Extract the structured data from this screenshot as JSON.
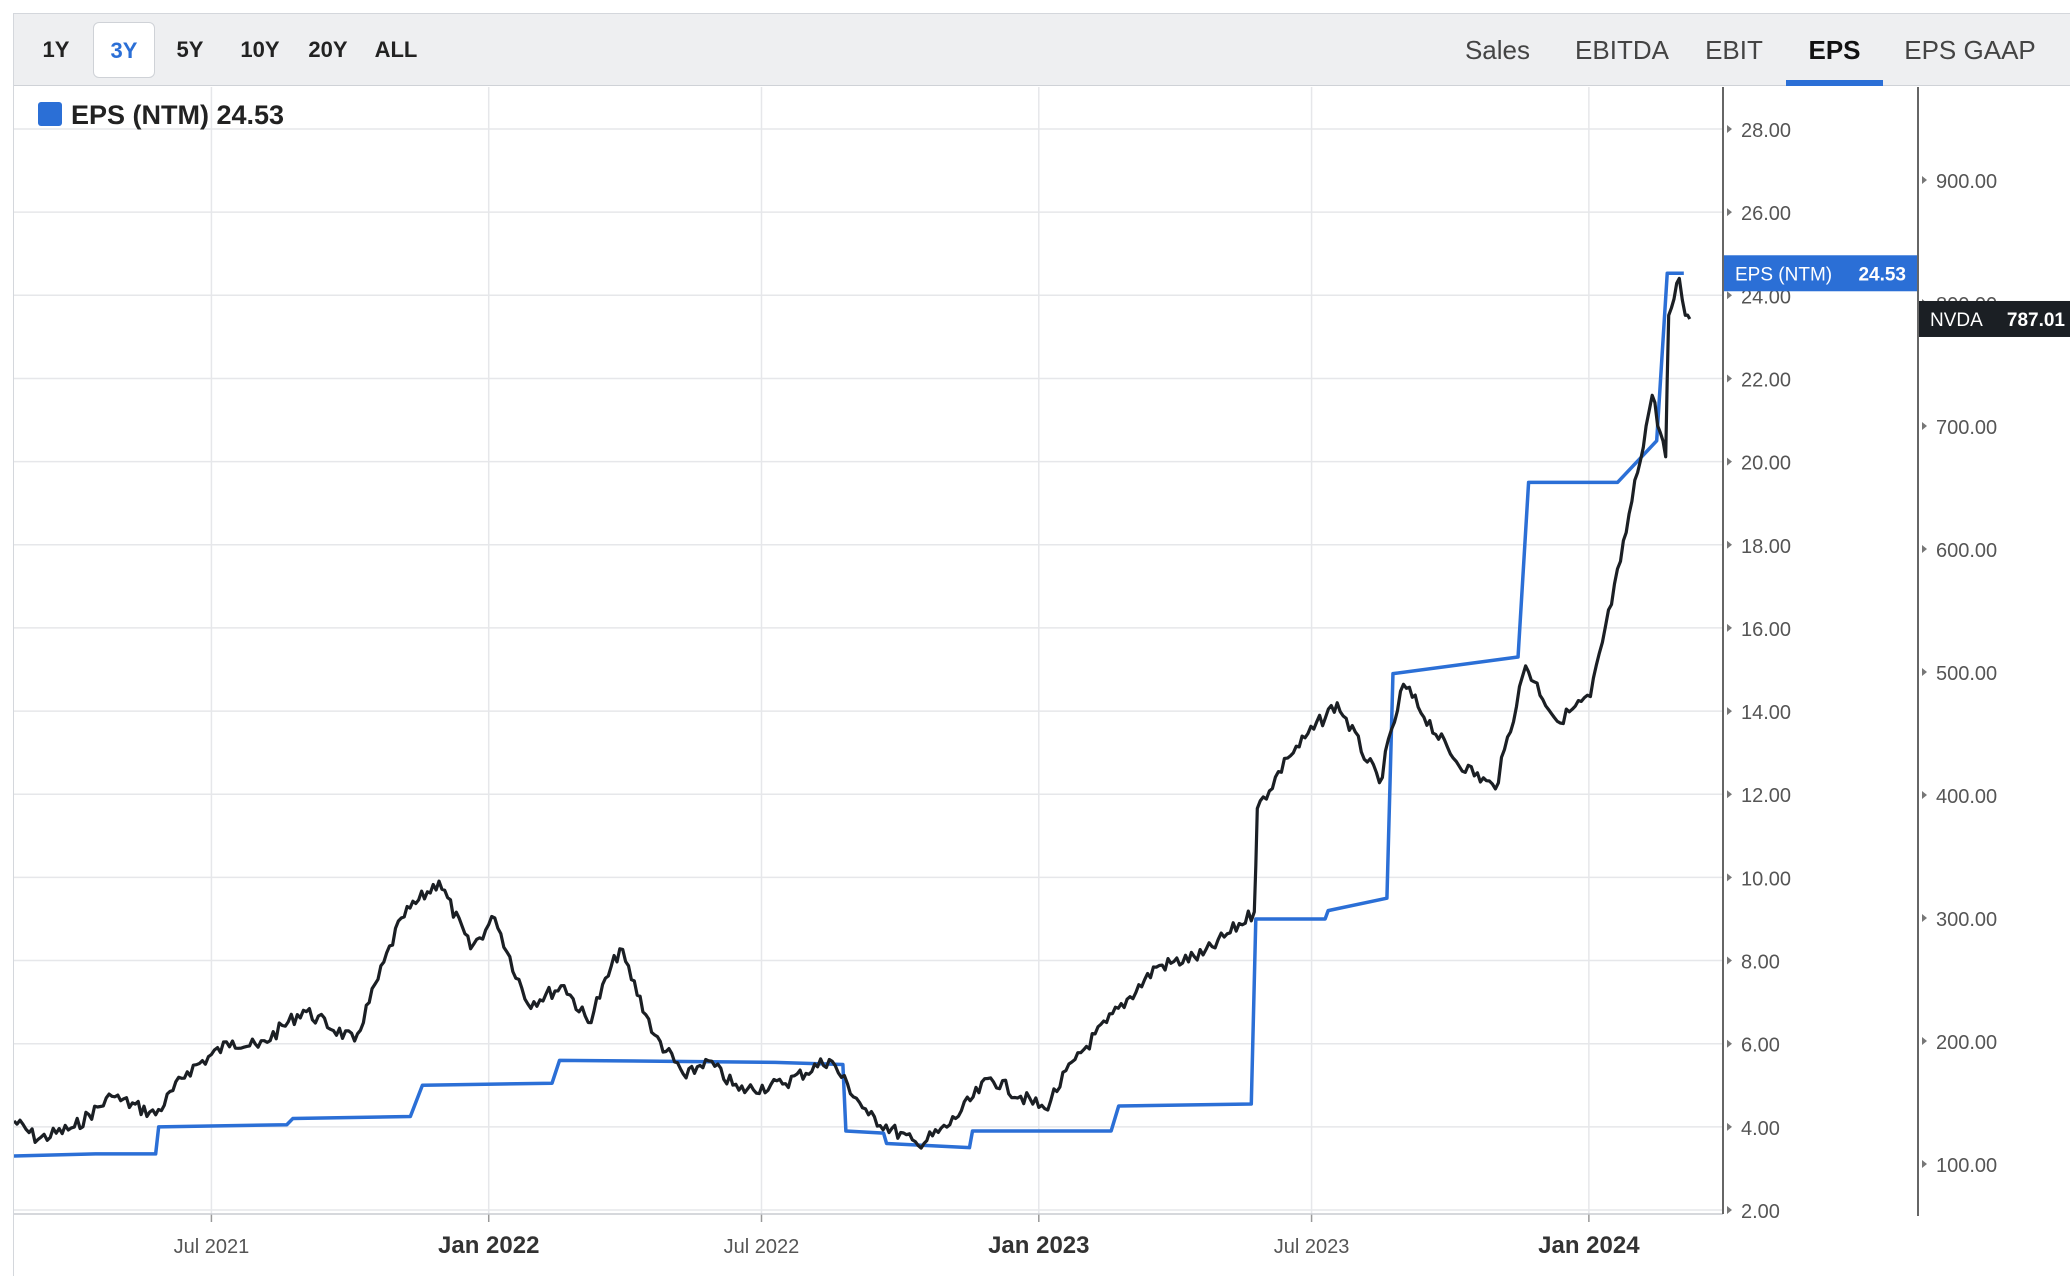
{
  "toolbar": {
    "ranges": [
      {
        "label": "1Y",
        "active": false
      },
      {
        "label": "3Y",
        "active": true
      },
      {
        "label": "5Y",
        "active": false
      },
      {
        "label": "10Y",
        "active": false
      },
      {
        "label": "20Y",
        "active": false
      },
      {
        "label": "ALL",
        "active": false
      }
    ],
    "metrics": [
      {
        "label": "Sales",
        "active": false
      },
      {
        "label": "EBITDA",
        "active": false
      },
      {
        "label": "EBIT",
        "active": false
      },
      {
        "label": "EPS",
        "active": true
      },
      {
        "label": "EPS GAAP",
        "active": false
      }
    ]
  },
  "colors": {
    "eps": "#2b6fd6",
    "price": "#1b1f24",
    "grid": "#e6e7ea"
  },
  "chart_data": {
    "type": "line",
    "legend": {
      "label": "EPS (NTM) 24.53",
      "placement": "top-left"
    },
    "x_range": [
      "2021-02-20",
      "2024-03-30"
    ],
    "x_ticks": [
      {
        "date": "2021-07-01",
        "label": "Jul 2021",
        "major": false
      },
      {
        "date": "2022-01-01",
        "label": "Jan 2022",
        "major": true
      },
      {
        "date": "2022-07-01",
        "label": "Jul 2022",
        "major": false
      },
      {
        "date": "2023-01-01",
        "label": "Jan 2023",
        "major": true
      },
      {
        "date": "2023-07-01",
        "label": "Jul 2023",
        "major": false
      },
      {
        "date": "2024-01-01",
        "label": "Jan 2024",
        "major": true
      }
    ],
    "y_left": {
      "ylim": [
        2,
        29
      ],
      "ticks": [
        {
          "v": 2,
          "label": "2.00"
        },
        {
          "v": 4,
          "label": "4.00"
        },
        {
          "v": 6,
          "label": "6.00"
        },
        {
          "v": 8,
          "label": "8.00"
        },
        {
          "v": 10,
          "label": "10.00"
        },
        {
          "v": 12,
          "label": "12.00"
        },
        {
          "v": 14,
          "label": "14.00"
        },
        {
          "v": 16,
          "label": "16.00"
        },
        {
          "v": 18,
          "label": "18.00"
        },
        {
          "v": 20,
          "label": "20.00"
        },
        {
          "v": 22,
          "label": "22.00"
        },
        {
          "v": 24,
          "label": "24.00"
        },
        {
          "v": 26,
          "label": "26.00"
        },
        {
          "v": 28,
          "label": "28.00"
        }
      ]
    },
    "y_right": {
      "ylim": [
        50,
        1010
      ],
      "ticks": [
        {
          "v": 100,
          "label": "100.00"
        },
        {
          "v": 200,
          "label": "200.00"
        },
        {
          "v": 300,
          "label": "300.00"
        },
        {
          "v": 400,
          "label": "400.00"
        },
        {
          "v": 500,
          "label": "500.00"
        },
        {
          "v": 600,
          "label": "600.00"
        },
        {
          "v": 700,
          "label": "700.00"
        },
        {
          "v": 800,
          "label": "800.00"
        },
        {
          "v": 900,
          "label": "900.00"
        }
      ]
    },
    "series": [
      {
        "name": "EPS (NTM)",
        "axis": "left",
        "step": true,
        "end_label": {
          "name": "EPS (NTM)",
          "value": "24.53"
        },
        "points": [
          [
            "2021-02-20",
            3.3
          ],
          [
            "2021-04-15",
            3.35
          ],
          [
            "2021-05-25",
            3.35
          ],
          [
            "2021-05-27",
            4.0
          ],
          [
            "2021-08-20",
            4.05
          ],
          [
            "2021-08-24",
            4.2
          ],
          [
            "2021-11-10",
            4.25
          ],
          [
            "2021-11-18",
            5.0
          ],
          [
            "2022-02-12",
            5.05
          ],
          [
            "2022-02-17",
            5.6
          ],
          [
            "2022-07-10",
            5.55
          ],
          [
            "2022-08-24",
            5.5
          ],
          [
            "2022-08-26",
            3.9
          ],
          [
            "2022-09-20",
            3.85
          ],
          [
            "2022-09-22",
            3.6
          ],
          [
            "2022-11-16",
            3.5
          ],
          [
            "2022-11-18",
            3.9
          ],
          [
            "2023-02-18",
            3.9
          ],
          [
            "2023-02-23",
            4.5
          ],
          [
            "2023-05-22",
            4.55
          ],
          [
            "2023-05-25",
            9.0
          ],
          [
            "2023-07-10",
            9.0
          ],
          [
            "2023-07-12",
            9.2
          ],
          [
            "2023-08-20",
            9.5
          ],
          [
            "2023-08-24",
            14.9
          ],
          [
            "2023-11-15",
            15.3
          ],
          [
            "2023-11-22",
            19.5
          ],
          [
            "2024-01-20",
            19.5
          ],
          [
            "2024-02-15",
            20.5
          ],
          [
            "2024-02-22",
            24.53
          ],
          [
            "2024-03-04",
            24.53
          ]
        ]
      },
      {
        "name": "NVDA",
        "axis": "right",
        "step": false,
        "end_label": {
          "name": "NVDA",
          "value": "787.01"
        },
        "points": [
          [
            "2021-02-20",
            135
          ],
          [
            "2021-03-08",
            120
          ],
          [
            "2021-04-01",
            130
          ],
          [
            "2021-04-26",
            155
          ],
          [
            "2021-05-25",
            140
          ],
          [
            "2021-06-15",
            175
          ],
          [
            "2021-07-15",
            200
          ],
          [
            "2021-08-01",
            195
          ],
          [
            "2021-08-31",
            225
          ],
          [
            "2021-10-04",
            200
          ],
          [
            "2021-11-04",
            300
          ],
          [
            "2021-11-29",
            330
          ],
          [
            "2021-12-20",
            275
          ],
          [
            "2022-01-05",
            300
          ],
          [
            "2022-01-27",
            230
          ],
          [
            "2022-02-20",
            245
          ],
          [
            "2022-03-08",
            215
          ],
          [
            "2022-03-29",
            275
          ],
          [
            "2022-04-21",
            205
          ],
          [
            "2022-05-12",
            170
          ],
          [
            "2022-05-25",
            185
          ],
          [
            "2022-06-16",
            160
          ],
          [
            "2022-07-15",
            165
          ],
          [
            "2022-08-15",
            185
          ],
          [
            "2022-09-10",
            140
          ],
          [
            "2022-10-13",
            115
          ],
          [
            "2022-11-01",
            130
          ],
          [
            "2022-11-30",
            170
          ],
          [
            "2022-12-20",
            155
          ],
          [
            "2023-01-05",
            145
          ],
          [
            "2023-01-25",
            185
          ],
          [
            "2023-02-15",
            215
          ],
          [
            "2023-03-20",
            260
          ],
          [
            "2023-04-20",
            270
          ],
          [
            "2023-05-24",
            305
          ],
          [
            "2023-05-26",
            389
          ],
          [
            "2023-06-15",
            430
          ],
          [
            "2023-07-18",
            475
          ],
          [
            "2023-08-15",
            410
          ],
          [
            "2023-08-31",
            490
          ],
          [
            "2023-10-03",
            430
          ],
          [
            "2023-10-31",
            405
          ],
          [
            "2023-11-20",
            505
          ],
          [
            "2023-12-11",
            460
          ],
          [
            "2024-01-02",
            480
          ],
          [
            "2024-01-22",
            590
          ],
          [
            "2024-02-08",
            700
          ],
          [
            "2024-02-12",
            725
          ],
          [
            "2024-02-21",
            675
          ],
          [
            "2024-02-23",
            790
          ],
          [
            "2024-03-01",
            820
          ],
          [
            "2024-03-05",
            790
          ],
          [
            "2024-03-08",
            787.01
          ]
        ]
      }
    ]
  }
}
